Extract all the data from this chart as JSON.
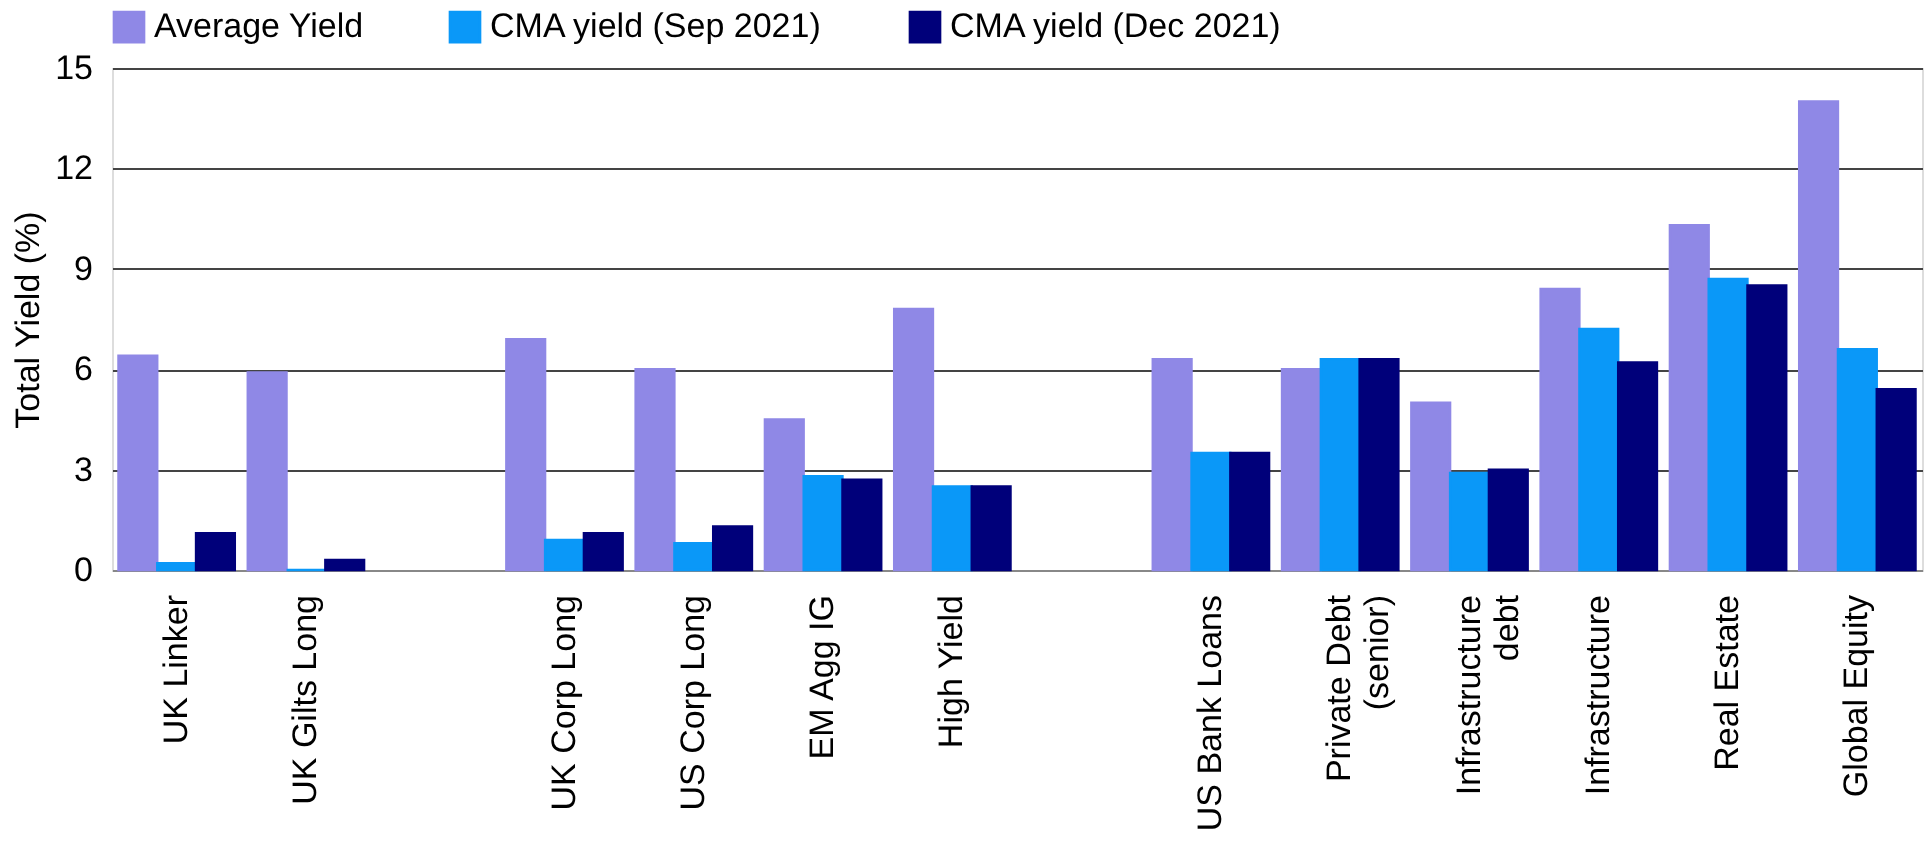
{
  "chart_data": {
    "type": "bar",
    "ylabel": "Total Yield (%)",
    "categories": [
      "UK Linker",
      "UK Gilts Long",
      null,
      "UK Corp Long",
      "US Corp Long",
      "EM Agg IG",
      "High Yield",
      null,
      "US Bank Loans",
      "Private Debt\n(senior)",
      "Infrastructure\ndebt",
      "Infrastructure",
      "Real Estate",
      "Global Equity"
    ],
    "series": [
      {
        "name": "Average Yield",
        "color": "#8f88e6",
        "values": [
          6.4,
          5.9,
          null,
          6.9,
          6.0,
          4.5,
          7.8,
          null,
          6.3,
          6.0,
          5.0,
          8.4,
          10.3,
          14.0
        ]
      },
      {
        "name": "CMA yield (Sep 2021)",
        "color": "#0a98f8",
        "values": [
          0.2,
          0,
          null,
          0.9,
          0.8,
          2.8,
          2.5,
          null,
          3.5,
          6.3,
          2.9,
          7.2,
          8.7,
          6.6
        ]
      },
      {
        "name": "CMA yield (Dec 2021)",
        "color": "#00007a",
        "values": [
          1.1,
          0.3,
          null,
          1.1,
          1.3,
          2.7,
          2.5,
          null,
          3.5,
          6.3,
          3.0,
          6.2,
          8.5,
          5.4
        ]
      }
    ],
    "ylim": [
      0,
      15
    ],
    "yticks": [
      0,
      3,
      6,
      9,
      12,
      15
    ],
    "grid": "y",
    "legend": "top left"
  }
}
